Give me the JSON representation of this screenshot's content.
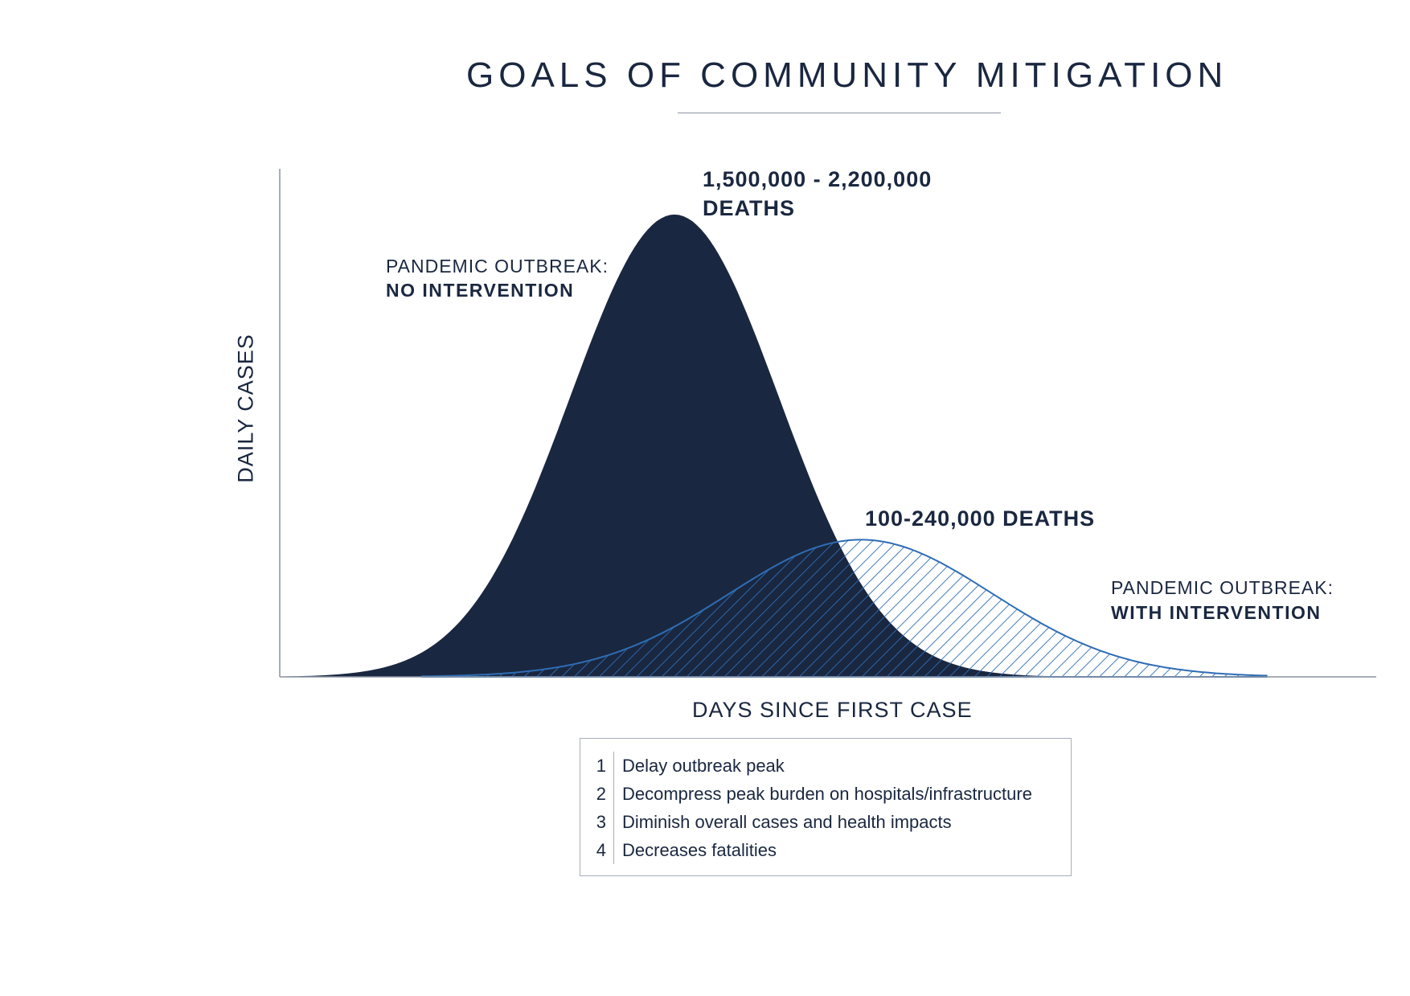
{
  "header": {
    "title": "GOALS OF COMMUNITY MITIGATION"
  },
  "chart_data": {
    "type": "area",
    "title": "GOALS OF COMMUNITY MITIGATION",
    "xlabel": "DAYS SINCE FIRST CASE",
    "ylabel": "DAILY CASES",
    "axis_ticks": "none",
    "grid": false,
    "series": [
      {
        "name": "PANDEMIC OUTBREAK: NO INTERVENTION",
        "fill": "solid",
        "color": "#1a2740",
        "peak_x": 0.36,
        "peak_y": 0.91,
        "spread": 0.095,
        "x_start": 0.0,
        "x_end": 0.9
      },
      {
        "name": "PANDEMIC OUTBREAK: WITH INTERVENTION",
        "fill": "hatched",
        "color": "#2e6db4",
        "peak_x": 0.53,
        "peak_y": 0.27,
        "spread": 0.12,
        "x_start": 0.13,
        "x_end": 0.9
      }
    ]
  },
  "annotations": {
    "no_intervention": {
      "line1": "PANDEMIC OUTBREAK:",
      "line2": "NO INTERVENTION"
    },
    "no_intervention_deaths": {
      "line1": "1,500,000 - 2,200,000",
      "line2": "DEATHS"
    },
    "with_intervention_deaths": "100-240,000 DEATHS",
    "with_intervention": {
      "line1": "PANDEMIC OUTBREAK:",
      "line2": "WITH INTERVENTION"
    }
  },
  "legend": {
    "items": [
      {
        "num": "1",
        "text": "Delay outbreak peak"
      },
      {
        "num": "2",
        "text": "Decompress peak burden on hospitals/infrastructure"
      },
      {
        "num": "3",
        "text": "Diminish overall cases and health impacts"
      },
      {
        "num": "4",
        "text": "Decreases fatalities"
      }
    ]
  }
}
